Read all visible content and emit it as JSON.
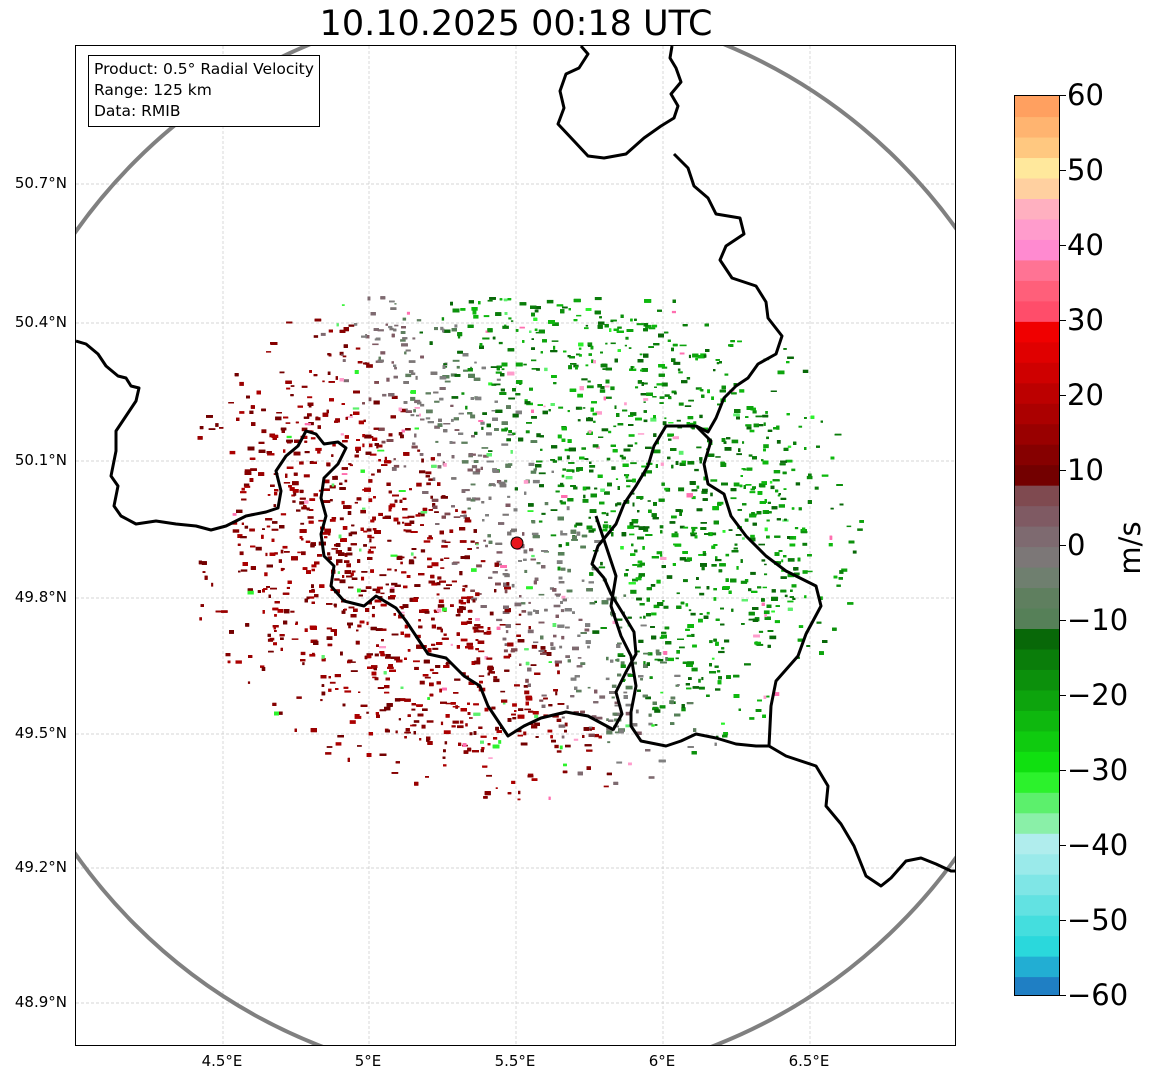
{
  "title": "10.10.2025 00:18 UTC",
  "info": {
    "product": "Product: 0.5° Radial Velocity",
    "range": "Range: 125 km",
    "data": "Data: RMIB"
  },
  "map": {
    "lat_ticks": [
      "50.7°N",
      "50.4°N",
      "50.1°N",
      "49.8°N",
      "49.5°N",
      "49.2°N",
      "48.9°N"
    ],
    "lon_ticks": [
      "4.5°E",
      "5°E",
      "5.5°E",
      "6°E",
      "6.5°E"
    ],
    "radar_site_color": "#e8141c",
    "range_ring_color": "#808080",
    "border_color": "#000000"
  },
  "colorbar": {
    "label": "m/s",
    "ticks": [
      "60",
      "50",
      "40",
      "30",
      "20",
      "10",
      "0",
      "−10",
      "−20",
      "−30",
      "−40",
      "−50",
      "−60"
    ],
    "min": -60,
    "max": 60,
    "colors": [
      "#1f7fc4",
      "#22aed3",
      "#2ad8dc",
      "#44dede",
      "#62e2e2",
      "#7fe6e6",
      "#9aeaea",
      "#b0eded",
      "#8af0a8",
      "#5cf06c",
      "#2cf22c",
      "#10e010",
      "#0fcb0f",
      "#0eb80e",
      "#0da40d",
      "#0c900c",
      "#0a7d0a",
      "#086808",
      "#568058",
      "#5f7f5f",
      "#6f7f6f",
      "#7c7777",
      "#7e6a70",
      "#7f5a63",
      "#7f4a50",
      "#730000",
      "#860000",
      "#990000",
      "#ab0000",
      "#bc0000",
      "#cf0000",
      "#e00000",
      "#f00000",
      "#ff4d6a",
      "#ff5f7a",
      "#ff7394",
      "#ff8ad0",
      "#ff9ccc",
      "#ffb0c0",
      "#ffd0a0",
      "#ffe89c",
      "#ffc880",
      "#ffb470",
      "#ffa060"
    ]
  }
}
